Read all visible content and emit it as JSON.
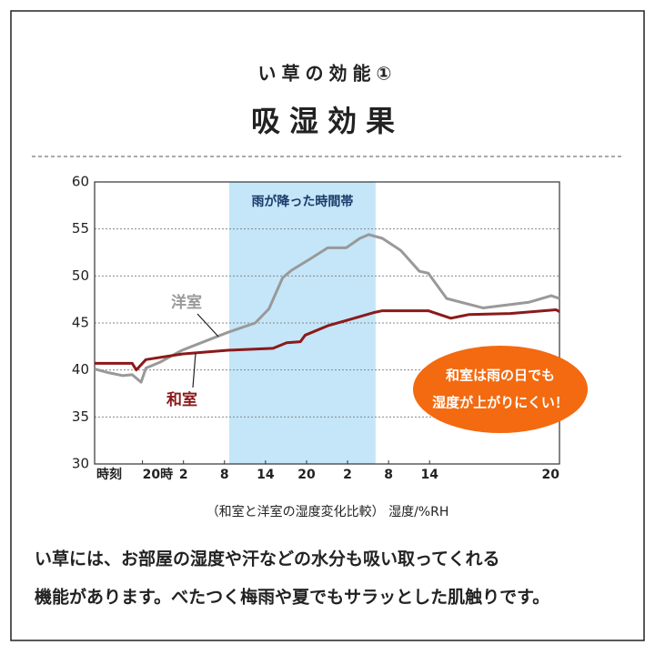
{
  "chart_data": {
    "type": "line",
    "subtitle": "い草の効能①",
    "title": "吸湿効果",
    "note": "（和室と洋室の湿度変化比較） 湿度/%RH",
    "xlabel": "時刻",
    "xlim": [
      0,
      68
    ],
    "xticks": [
      {
        "value": 7,
        "label": "20時"
      },
      {
        "value": 13,
        "label": "2"
      },
      {
        "value": 19,
        "label": "8"
      },
      {
        "value": 25,
        "label": "14"
      },
      {
        "value": 31,
        "label": "20"
      },
      {
        "value": 37,
        "label": "2"
      },
      {
        "value": 43,
        "label": "8"
      },
      {
        "value": 49,
        "label": "14"
      },
      {
        "value": 68,
        "label": "20"
      }
    ],
    "ylim": [
      30,
      60
    ],
    "yticks": [
      30,
      35,
      40,
      45,
      50,
      55,
      60
    ],
    "grid": true,
    "highlight": {
      "label": "雨が降った時間帯",
      "x": [
        19.7,
        41.1
      ],
      "color": "#c4e6f8"
    },
    "series": [
      {
        "name": "洋室",
        "color": "#999999",
        "x": [
          0,
          2.1,
          4.1,
          5.5,
          6.8,
          7.5,
          9.5,
          12.8,
          19.5,
          23.5,
          25.5,
          27.5,
          28.8,
          31.5,
          34.1,
          36.8,
          38.8,
          40.1,
          42.1,
          44.8,
          47.5,
          48.8,
          51.5,
          56.8,
          63.5,
          66.8,
          68
        ],
        "values": [
          40.1,
          39.7,
          39.4,
          39.5,
          38.7,
          40.2,
          40.8,
          42.1,
          44.0,
          45.0,
          46.5,
          49.8,
          50.6,
          51.8,
          53.0,
          53.0,
          54.0,
          54.4,
          54.0,
          52.7,
          50.5,
          50.3,
          47.6,
          46.6,
          47.2,
          47.9,
          47.6
        ]
      },
      {
        "name": "和室",
        "color": "#8b1a1a",
        "x": [
          0,
          5.5,
          6.1,
          7.5,
          12.8,
          19.5,
          26.1,
          28.1,
          30.1,
          30.8,
          34.1,
          37.5,
          40.8,
          42.1,
          48.8,
          52.1,
          54.8,
          60.8,
          67.5,
          68
        ],
        "values": [
          40.7,
          40.7,
          40.0,
          41.1,
          41.7,
          42.1,
          42.3,
          42.9,
          43.0,
          43.7,
          44.7,
          45.4,
          46.1,
          46.3,
          46.3,
          45.5,
          45.9,
          46.0,
          46.4,
          46.2
        ]
      }
    ],
    "callout": [
      "和室は雨の日でも",
      "湿度が上がりにくい！"
    ]
  },
  "body": [
    "い草には、お部屋の湿度や汗などの水分も吸い取ってくれる",
    "機能があります。べたつく梅雨や夏でもサラッとした肌触りです。"
  ]
}
